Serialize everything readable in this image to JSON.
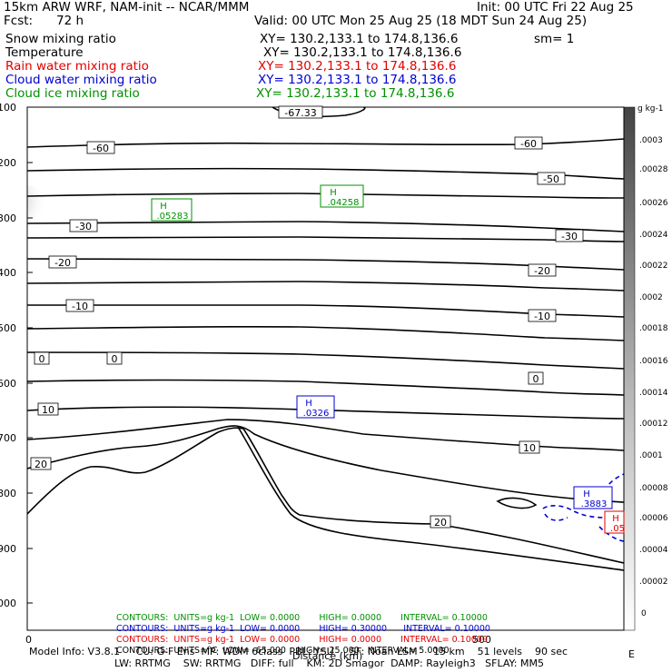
{
  "header": {
    "model": "15km ARW WRF, NAM-init -- NCAR/MMM",
    "init": "Init: 00 UTC Fri 22 Aug 25",
    "fcst_label": "Fcst:",
    "fcst_value": "72 h",
    "valid": "Valid: 00 UTC Mon 25 Aug 25 (18 MDT Sun 24 Aug 25)",
    "fields": [
      {
        "name": "Snow mixing ratio",
        "xy": "XY= 130.2,133.1 to 174.8,136.6",
        "extra": "sm= 1",
        "color": "#000000"
      },
      {
        "name": "Temperature",
        "xy": "XY= 130.2,133.1 to 174.8,136.6",
        "extra": "",
        "color": "#000000"
      },
      {
        "name": "Rain water mixing ratio",
        "xy": "XY= 130.2,133.1 to 174.8,136.6",
        "extra": "",
        "color": "#e00000"
      },
      {
        "name": "Cloud water mixing ratio",
        "xy": "XY= 130.2,133.1 to 174.8,136.6",
        "extra": "",
        "color": "#0000d0"
      },
      {
        "name": "Cloud ice mixing ratio",
        "xy": "XY= 130.2,133.1 to 174.8,136.6",
        "extra": "",
        "color": "#009000"
      }
    ]
  },
  "chart_data": {
    "type": "contour",
    "xlabel": "Distance (km)",
    "x_ticks": [
      "0",
      "500"
    ],
    "x_right_label": "E",
    "y_ticks": [
      "100",
      "200",
      "300",
      "400",
      "500",
      "600",
      "700",
      "800",
      "900",
      "1000"
    ],
    "colorbar_unit": "g kg-1",
    "colorbar_ticks": [
      ".0003",
      ".00028",
      ".00026",
      ".00024",
      ".00022",
      ".0002",
      ".00018",
      ".00016",
      ".00014",
      ".00012",
      ".0001",
      ".00008",
      ".00006",
      ".00004",
      ".00002",
      "0"
    ],
    "temperature_labels": [
      "-67.33",
      "-60",
      "-60",
      "-50",
      "-30",
      "-30",
      "-20",
      "-20",
      "-10",
      "-10",
      "0",
      "0",
      "0",
      "10",
      "10",
      "20",
      "20"
    ],
    "highs": [
      {
        "field": "Cloud ice mixing ratio",
        "label": "H",
        "value": ".05283",
        "color": "#009000"
      },
      {
        "field": "Cloud ice mixing ratio",
        "label": "H",
        "value": ".04258",
        "color": "#009000"
      },
      {
        "field": "Cloud water mixing ratio",
        "label": "H",
        "value": ".0326",
        "color": "#0000d0"
      },
      {
        "field": "Cloud water mixing ratio",
        "label": "H",
        "value": ".3883",
        "color": "#0000d0"
      },
      {
        "field": "Rain water mixing ratio",
        "label": "H",
        "value": ".05",
        "color": "#e00000"
      }
    ],
    "contour_info": [
      {
        "label": "CONTOURS:",
        "units": "UNITS=g kg-1",
        "low": "LOW= 0.0000",
        "high": "HIGH= 0.0000",
        "interval": "INTERVAL= 0.10000",
        "color": "#009000"
      },
      {
        "label": "CONTOURS:",
        "units": "UNITS=g kg-1",
        "low": "LOW= 0.0000",
        "high": "HIGH= 0.30000",
        "interval": "INTERVAL= 0.10000",
        "color": "#0000d0"
      },
      {
        "label": "CONTOURS:",
        "units": "UNITS=g kg-1",
        "low": "LOW= 0.0000",
        "high": "HIGH= 0.0000",
        "interval": "INTERVAL= 0.10000",
        "color": "#e00000"
      },
      {
        "label": "CONTOURS:",
        "units": "UNITS=°C",
        "low": "LOW= -65.000",
        "high": "HIGH= 25.000",
        "interval": "INTERVAL= 5.0000",
        "color": "#000000"
      }
    ]
  },
  "footer": {
    "line1": "Model Info: V3.8.1     CU: G-F Ens  MP: WDM 6class  PBL: YSU     SF: Noah LSM     15 km    51 levels    90 sec",
    "line2": "LW: RRTMG    SW: RRTMG   DIFF: full    KM: 2D Smagor  DAMP: Rayleigh3   SFLAY: MM5"
  }
}
